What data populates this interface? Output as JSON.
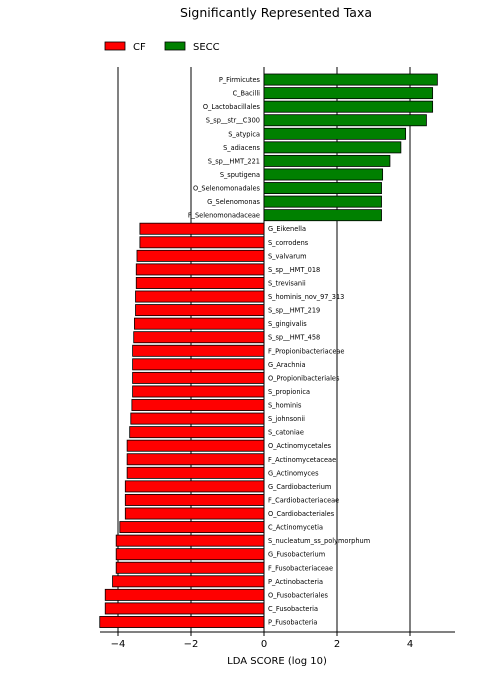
{
  "chart_data": {
    "type": "bar",
    "orientation": "horizontal",
    "title": "Significantly Represented Taxa",
    "xlabel": "LDA SCORE (log 10)",
    "ylabel": "",
    "xlim": [
      -4.6,
      4.9
    ],
    "xticks": [
      -4,
      -2,
      0,
      2,
      4
    ],
    "grid": "vertical lines at major ticks",
    "legend_position": "top-left",
    "colors": {
      "CF": "#ff0000",
      "SECC": "#008000",
      "edge": "#000000"
    },
    "series": [
      {
        "name": "CF",
        "color": "#ff0000"
      },
      {
        "name": "SECC",
        "color": "#008000"
      }
    ],
    "bars": [
      {
        "label": "P_Firmicutes",
        "value": 4.75,
        "group": "SECC"
      },
      {
        "label": "C_Bacilli",
        "value": 4.62,
        "group": "SECC"
      },
      {
        "label": "O_Lactobacillales",
        "value": 4.62,
        "group": "SECC"
      },
      {
        "label": "S_sp__str__C300",
        "value": 4.45,
        "group": "SECC"
      },
      {
        "label": "S_atypica",
        "value": 3.88,
        "group": "SECC"
      },
      {
        "label": "S_adiacens",
        "value": 3.75,
        "group": "SECC"
      },
      {
        "label": "S_sp__HMT_221",
        "value": 3.45,
        "group": "SECC"
      },
      {
        "label": "S_sputigena",
        "value": 3.25,
        "group": "SECC"
      },
      {
        "label": "O_Selenomonadales",
        "value": 3.22,
        "group": "SECC"
      },
      {
        "label": "G_Selenomonas",
        "value": 3.22,
        "group": "SECC"
      },
      {
        "label": "F_Selenomonadaceae",
        "value": 3.22,
        "group": "SECC"
      },
      {
        "label": "G_Eikenella",
        "value": -3.4,
        "group": "CF"
      },
      {
        "label": "S_corrodens",
        "value": -3.4,
        "group": "CF"
      },
      {
        "label": "S_valvarum",
        "value": -3.48,
        "group": "CF"
      },
      {
        "label": "S_sp__HMT_018",
        "value": -3.5,
        "group": "CF"
      },
      {
        "label": "S_trevisanii",
        "value": -3.5,
        "group": "CF"
      },
      {
        "label": "S_hominis_nov_97_313",
        "value": -3.52,
        "group": "CF"
      },
      {
        "label": "S_sp__HMT_219",
        "value": -3.52,
        "group": "CF"
      },
      {
        "label": "S_gingivalis",
        "value": -3.55,
        "group": "CF"
      },
      {
        "label": "S_sp__HMT_458",
        "value": -3.57,
        "group": "CF"
      },
      {
        "label": "F_Propionibacteriaceae",
        "value": -3.6,
        "group": "CF"
      },
      {
        "label": "G_Arachnia",
        "value": -3.6,
        "group": "CF"
      },
      {
        "label": "O_Propionibacteriales",
        "value": -3.6,
        "group": "CF"
      },
      {
        "label": "S_propionica",
        "value": -3.6,
        "group": "CF"
      },
      {
        "label": "S_hominis",
        "value": -3.62,
        "group": "CF"
      },
      {
        "label": "S_johnsonii",
        "value": -3.65,
        "group": "CF"
      },
      {
        "label": "S_catoniae",
        "value": -3.68,
        "group": "CF"
      },
      {
        "label": "O_Actinomycetales",
        "value": -3.75,
        "group": "CF"
      },
      {
        "label": "F_Actinomycetaceae",
        "value": -3.75,
        "group": "CF"
      },
      {
        "label": "G_Actinomyces",
        "value": -3.75,
        "group": "CF"
      },
      {
        "label": "G_Cardiobacterium",
        "value": -3.8,
        "group": "CF"
      },
      {
        "label": "F_Cardiobacteriaceae",
        "value": -3.8,
        "group": "CF"
      },
      {
        "label": "O_Cardiobacteriales",
        "value": -3.8,
        "group": "CF"
      },
      {
        "label": "C_Actinomycetia",
        "value": -3.95,
        "group": "CF"
      },
      {
        "label": "S_nucleatum_ss_polymorphum",
        "value": -4.05,
        "group": "CF"
      },
      {
        "label": "G_Fusobacterium",
        "value": -4.05,
        "group": "CF"
      },
      {
        "label": "F_Fusobacteriaceae",
        "value": -4.05,
        "group": "CF"
      },
      {
        "label": "P_Actinobacteria",
        "value": -4.15,
        "group": "CF"
      },
      {
        "label": "O_Fusobacteriales",
        "value": -4.35,
        "group": "CF"
      },
      {
        "label": "C_Fusobacteria",
        "value": -4.35,
        "group": "CF"
      },
      {
        "label": "P_Fusobacteria",
        "value": -4.5,
        "group": "CF"
      }
    ]
  }
}
